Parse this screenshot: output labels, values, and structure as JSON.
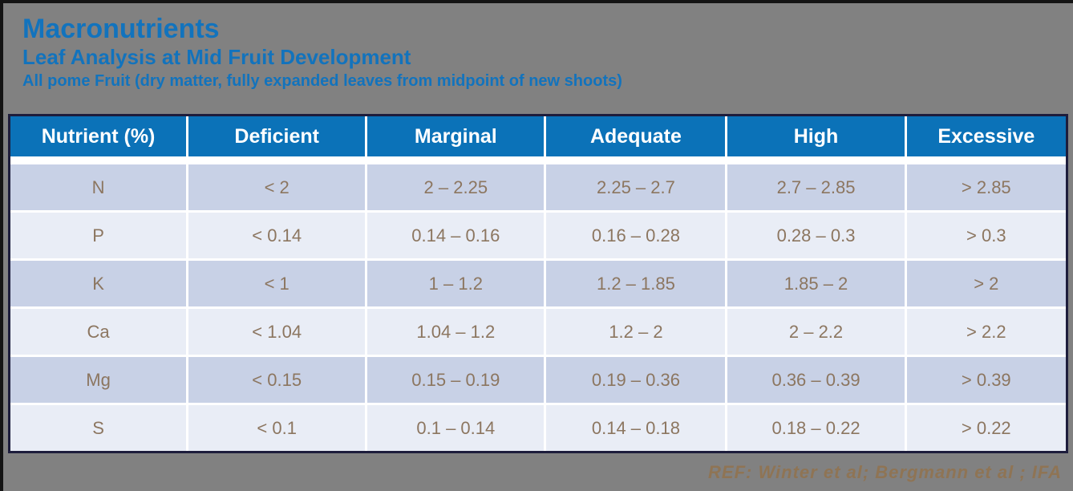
{
  "slide": {
    "title": "Macronutrients",
    "subtitle": "Leaf Analysis at Mid Fruit Development",
    "subtitle2": "All pome Fruit (dry matter, fully expanded leaves from midpoint of new shoots)",
    "footer_ref": "REF: Winter et al; Bergmann et al ; IFA"
  },
  "colors": {
    "slide_background": "#818181",
    "title_blue": "#1273BD",
    "header_bg": "#0B72B8",
    "header_text": "#FFFFFF",
    "row_odd_bg": "#C8D1E6",
    "row_even_bg": "#E9EDF6",
    "cell_text": "#8C7660",
    "ref_text": "#8F7454",
    "table_border": "#1D1D3C"
  },
  "table": {
    "headers": [
      "Nutrient (%)",
      "Deficient",
      "Marginal",
      "Adequate",
      "High",
      "Excessive"
    ],
    "rows": [
      {
        "cells": [
          "N",
          "< 2",
          "2 – 2.25",
          "2.25 – 2.7",
          "2.7 – 2.85",
          "> 2.85"
        ]
      },
      {
        "cells": [
          "P",
          "< 0.14",
          "0.14 – 0.16",
          "0.16 – 0.28",
          "0.28 – 0.3",
          "> 0.3"
        ]
      },
      {
        "cells": [
          "K",
          "< 1",
          "1 – 1.2",
          "1.2 – 1.85",
          "1.85 – 2",
          "> 2"
        ]
      },
      {
        "cells": [
          "Ca",
          "< 1.04",
          "1.04 – 1.2",
          "1.2 – 2",
          "2 – 2.2",
          "> 2.2"
        ]
      },
      {
        "cells": [
          "Mg",
          "< 0.15",
          "0.15 – 0.19",
          "0.19 – 0.36",
          "0.36 – 0.39",
          "> 0.39"
        ]
      },
      {
        "cells": [
          "S",
          "< 0.1",
          "0.1 – 0.14",
          "0.14 – 0.18",
          "0.18 – 0.22",
          "> 0.22"
        ]
      }
    ]
  }
}
